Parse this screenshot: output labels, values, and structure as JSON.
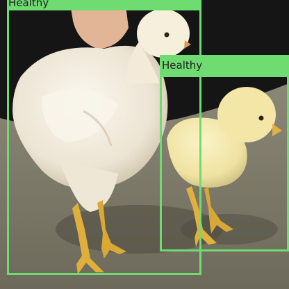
{
  "detections": [
    {
      "label": "Healthy",
      "color": "#6fdc72"
    },
    {
      "label": "Healthy",
      "color": "#6fdc72"
    }
  ],
  "palette": {
    "background": "#161616",
    "floor": "#7b7867",
    "chick_feather": "#f1e6a4",
    "hen_feather": "#f3eee3",
    "legs": "#e4b43c",
    "hand": "#e6b79a"
  }
}
